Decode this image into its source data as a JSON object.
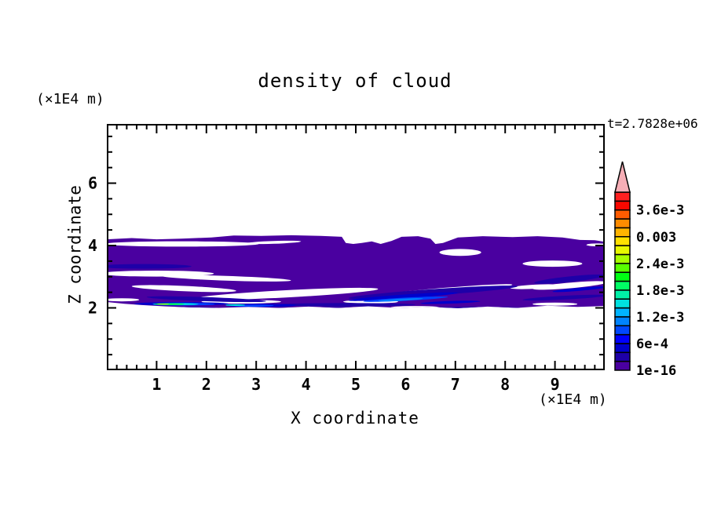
{
  "chart_data": {
    "type": "filled-contour",
    "title": "density of cloud",
    "annotation": "t=2.7828e+06",
    "xlabel": "X coordinate",
    "ylabel": "Z coordinate",
    "x_unit": "(×1E4 m)",
    "y_unit": "(×1E4 m)",
    "xlim": [
      0,
      10
    ],
    "ylim": [
      0,
      7.9
    ],
    "x_major_ticks": [
      1,
      2,
      3,
      4,
      5,
      6,
      7,
      8,
      9
    ],
    "x_minor_step": 0.2,
    "y_major_ticks": [
      2,
      4,
      6
    ],
    "y_minor_step": 0.5,
    "frame_color": "#000000",
    "background_color": "#ffffff",
    "colorbar": {
      "n_segments": 20,
      "value_min": "1e-16",
      "value_step": "2e-4",
      "value_max": "4e-3",
      "overflow_arrow_color": "#F6AEB6",
      "colors_bottom_to_top": [
        "#4A00A0",
        "#1E00A8",
        "#0000CC",
        "#0000FF",
        "#0048FF",
        "#0084FF",
        "#00B4FF",
        "#00E0E0",
        "#00F0A8",
        "#00FC64",
        "#00FF14",
        "#58FF00",
        "#A8FF00",
        "#E8F800",
        "#FFE000",
        "#FFB400",
        "#FF8C00",
        "#FF5C00",
        "#F80800",
        "#FF2020"
      ],
      "labels": [
        {
          "text": "1e-16",
          "boundary": 0
        },
        {
          "text": "6e-4",
          "boundary": 3
        },
        {
          "text": "1.2e-3",
          "boundary": 6
        },
        {
          "text": "1.8e-3",
          "boundary": 9
        },
        {
          "text": "2.4e-3",
          "boundary": 12
        },
        {
          "text": "0.003",
          "boundary": 15
        },
        {
          "text": "3.6e-3",
          "boundary": 18
        }
      ]
    },
    "cloud": {
      "base_color": "#4A00A0",
      "outline": [
        [
          0,
          4.2
        ],
        [
          0.5,
          4.24
        ],
        [
          1.0,
          4.2
        ],
        [
          1.5,
          4.22
        ],
        [
          2.1,
          4.26
        ],
        [
          2.55,
          4.32
        ],
        [
          3.1,
          4.31
        ],
        [
          3.7,
          4.33
        ],
        [
          4.3,
          4.31
        ],
        [
          4.72,
          4.28
        ],
        [
          4.8,
          4.08
        ],
        [
          4.95,
          4.05
        ],
        [
          5.12,
          4.08
        ],
        [
          5.32,
          4.13
        ],
        [
          5.5,
          4.05
        ],
        [
          5.72,
          4.15
        ],
        [
          5.92,
          4.28
        ],
        [
          6.25,
          4.3
        ],
        [
          6.5,
          4.22
        ],
        [
          6.6,
          4.05
        ],
        [
          6.75,
          4.08
        ],
        [
          7.05,
          4.26
        ],
        [
          7.55,
          4.3
        ],
        [
          8.15,
          4.27
        ],
        [
          8.65,
          4.3
        ],
        [
          9.15,
          4.26
        ],
        [
          9.5,
          4.18
        ],
        [
          9.8,
          4.17
        ],
        [
          10,
          4.12
        ],
        [
          10,
          2.06
        ],
        [
          9.45,
          2.03
        ],
        [
          8.85,
          2.07
        ],
        [
          8.25,
          2.0
        ],
        [
          7.65,
          2.04
        ],
        [
          7.05,
          1.99
        ],
        [
          6.45,
          2.03
        ],
        [
          5.85,
          2.0
        ],
        [
          5.25,
          2.05
        ],
        [
          4.65,
          2.0
        ],
        [
          4.05,
          2.04
        ],
        [
          3.45,
          2.0
        ],
        [
          2.85,
          2.03
        ],
        [
          2.25,
          2.0
        ],
        [
          1.65,
          2.02
        ],
        [
          1.15,
          2.05
        ],
        [
          0.7,
          2.09
        ],
        [
          0.35,
          2.13
        ],
        [
          0,
          2.19
        ]
      ],
      "holes_color": "#FFFFFF",
      "holes": [
        {
          "x": 1.5,
          "z": 4.05,
          "rx": 1.55,
          "ry": 0.085,
          "rot": 0
        },
        {
          "x": 3.35,
          "z": 4.1,
          "rx": 0.55,
          "ry": 0.045,
          "rot": -2
        },
        {
          "x": 1.0,
          "z": 3.1,
          "rx": 1.15,
          "ry": 0.095,
          "rot": 0
        },
        {
          "x": 2.4,
          "z": 2.95,
          "rx": 1.3,
          "ry": 0.075,
          "rot": 2
        },
        {
          "x": 1.55,
          "z": 2.62,
          "rx": 1.05,
          "ry": 0.085,
          "rot": 2.5
        },
        {
          "x": 3.6,
          "z": 2.45,
          "rx": 1.85,
          "ry": 0.115,
          "rot": -3
        },
        {
          "x": 2.7,
          "z": 2.2,
          "rx": 0.8,
          "ry": 0.06,
          "rot": 0
        },
        {
          "x": 6.55,
          "z": 2.52,
          "rx": 1.6,
          "ry": 0.09,
          "rot": -5
        },
        {
          "x": 5.3,
          "z": 2.2,
          "rx": 0.55,
          "ry": 0.055,
          "rot": 0
        },
        {
          "x": 7.1,
          "z": 3.78,
          "rx": 0.42,
          "ry": 0.11,
          "rot": 0
        },
        {
          "x": 8.95,
          "z": 3.42,
          "rx": 0.6,
          "ry": 0.1,
          "rot": 0
        },
        {
          "x": 9.3,
          "z": 2.72,
          "rx": 0.75,
          "ry": 0.09,
          "rot": -5
        },
        {
          "x": 8.6,
          "z": 2.68,
          "rx": 0.5,
          "ry": 0.065,
          "rot": -3
        },
        {
          "x": 6.2,
          "z": 2.01,
          "rx": 0.5,
          "ry": 0.05,
          "rot": 0
        },
        {
          "x": 9.0,
          "z": 2.12,
          "rx": 0.45,
          "ry": 0.05,
          "rot": 0
        },
        {
          "x": 9.85,
          "z": 4.02,
          "rx": 0.22,
          "ry": 0.045,
          "rot": 0
        },
        {
          "x": 0.3,
          "z": 2.26,
          "rx": 0.35,
          "ry": 0.05,
          "rot": 0
        }
      ],
      "streaks": [
        {
          "color": "#1E00A8",
          "x": 0.75,
          "z": 3.33,
          "rx": 0.95,
          "ry": 0.075,
          "rot": 0
        },
        {
          "color": "#1E00A8",
          "x": 6.55,
          "z": 2.5,
          "rx": 1.7,
          "ry": 0.1,
          "rot": -4
        },
        {
          "color": "#1E00A8",
          "x": 9.3,
          "z": 2.92,
          "rx": 0.72,
          "ry": 0.09,
          "rot": -6
        },
        {
          "color": "#1E00A8",
          "x": 2.0,
          "z": 2.28,
          "rx": 1.2,
          "ry": 0.065,
          "rot": 2
        },
        {
          "color": "#1E00A8",
          "x": 4.8,
          "z": 2.1,
          "rx": 1.4,
          "ry": 0.055,
          "rot": 0
        },
        {
          "color": "#1E00A8",
          "x": 9.2,
          "z": 2.33,
          "rx": 0.85,
          "ry": 0.06,
          "rot": -3
        },
        {
          "color": "#1E00A8",
          "x": 1.2,
          "z": 2.0,
          "rx": 1.0,
          "ry": 0.04,
          "rot": 0
        },
        {
          "color": "#1E00A8",
          "x": 4.4,
          "z": 1.99,
          "rx": 1.2,
          "ry": 0.035,
          "rot": 0
        },
        {
          "color": "#1E00A8",
          "x": 7.4,
          "z": 2.0,
          "rx": 0.9,
          "ry": 0.035,
          "rot": 0
        },
        {
          "color": "#0000CC",
          "x": 5.95,
          "z": 2.36,
          "rx": 1.1,
          "ry": 0.065,
          "rot": -4
        },
        {
          "color": "#0000CC",
          "x": 1.5,
          "z": 2.13,
          "rx": 0.95,
          "ry": 0.055,
          "rot": 0
        },
        {
          "color": "#0000CC",
          "x": 3.1,
          "z": 2.08,
          "rx": 0.7,
          "ry": 0.05,
          "rot": 0
        },
        {
          "color": "#0000CC",
          "x": 9.5,
          "z": 2.6,
          "rx": 0.55,
          "ry": 0.05,
          "rot": -5
        },
        {
          "color": "#0000CC",
          "x": 6.9,
          "z": 2.18,
          "rx": 0.6,
          "ry": 0.04,
          "rot": -2
        },
        {
          "color": "#0040FF",
          "x": 6.0,
          "z": 2.28,
          "rx": 0.85,
          "ry": 0.05,
          "rot": -3
        },
        {
          "color": "#0040FF",
          "x": 1.55,
          "z": 2.12,
          "rx": 0.62,
          "ry": 0.042,
          "rot": 0
        },
        {
          "color": "#0040FF",
          "x": 2.95,
          "z": 2.07,
          "rx": 0.4,
          "ry": 0.035,
          "rot": 0
        },
        {
          "color": "#0080FF",
          "x": 5.9,
          "z": 2.26,
          "rx": 0.45,
          "ry": 0.035,
          "rot": -3
        },
        {
          "color": "#00E0E0",
          "x": 1.38,
          "z": 2.12,
          "rx": 0.46,
          "ry": 0.032,
          "rot": 0
        },
        {
          "color": "#00E0E0",
          "x": 2.58,
          "z": 2.09,
          "rx": 0.2,
          "ry": 0.028,
          "rot": 0
        },
        {
          "color": "#00F040",
          "x": 1.26,
          "z": 2.12,
          "rx": 0.3,
          "ry": 0.024,
          "rot": 0
        },
        {
          "color": "#C8EE00",
          "x": 1.13,
          "z": 2.12,
          "rx": 0.12,
          "ry": 0.016,
          "rot": 0
        }
      ]
    }
  }
}
